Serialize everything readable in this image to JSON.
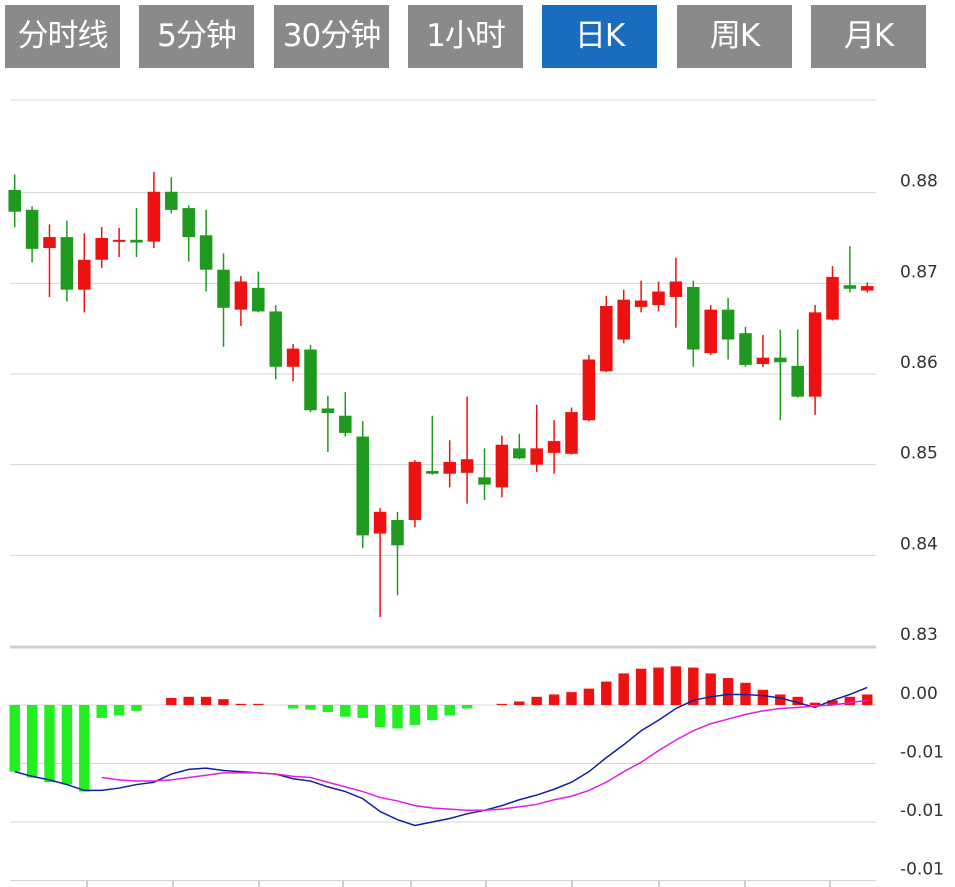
{
  "tabs": {
    "items": [
      "分时线",
      "5分钟",
      "30分钟",
      "1小时",
      "日K",
      "周K",
      "月K"
    ],
    "active": 4
  },
  "chart_data": [
    {
      "type": "candlestick",
      "categories": [
        null,
        null,
        null,
        null,
        null,
        null,
        null,
        null,
        null,
        null,
        null,
        null,
        null,
        null,
        null,
        null,
        null,
        null,
        null,
        null,
        null,
        null,
        null,
        null,
        null,
        null,
        null,
        null,
        null,
        null,
        null,
        null,
        null,
        null,
        null,
        null,
        null,
        null,
        null,
        null,
        null,
        null,
        null,
        null,
        null,
        null,
        null,
        null,
        null,
        null
      ],
      "open": [
        0.8803,
        0.8781,
        0.8739,
        0.8751,
        0.8693,
        0.8726,
        0.8746,
        0.8748,
        0.8746,
        0.8801,
        0.8783,
        0.8753,
        0.8715,
        0.8671,
        0.8695,
        0.8669,
        0.8608,
        0.8627,
        0.8562,
        0.8554,
        0.8531,
        0.8424,
        0.8439,
        0.8439,
        0.8493,
        0.849,
        0.8491,
        0.8486,
        0.8475,
        0.8518,
        0.85,
        0.8513,
        0.8512,
        0.8549,
        0.8603,
        0.8638,
        0.8674,
        0.8676,
        0.8685,
        0.8696,
        0.8623,
        0.8671,
        0.8645,
        0.8611,
        0.8618,
        0.8609,
        0.8575,
        0.866,
        0.8698,
        0.8692
      ],
      "high": [
        0.882,
        0.8785,
        0.8765,
        0.8769,
        0.8755,
        0.8762,
        0.8761,
        0.8783,
        0.8823,
        0.8817,
        0.8786,
        0.8781,
        0.8733,
        0.8708,
        0.8713,
        0.8676,
        0.8633,
        0.8632,
        0.8576,
        0.858,
        0.8548,
        0.8452,
        0.8448,
        0.8505,
        0.8554,
        0.8527,
        0.8575,
        0.8518,
        0.8532,
        0.8534,
        0.8566,
        0.8549,
        0.8563,
        0.8621,
        0.8686,
        0.8693,
        0.8703,
        0.8702,
        0.8728,
        0.8703,
        0.8676,
        0.8684,
        0.8652,
        0.8643,
        0.8649,
        0.8649,
        0.8676,
        0.8719,
        0.8741,
        0.8701
      ],
      "low": [
        0.8762,
        0.8723,
        0.8685,
        0.868,
        0.8668,
        0.8717,
        0.8729,
        0.8729,
        0.8739,
        0.8777,
        0.8724,
        0.8691,
        0.863,
        0.8653,
        0.8668,
        0.8594,
        0.8592,
        0.8558,
        0.8514,
        0.8531,
        0.8408,
        0.8332,
        0.8356,
        0.8431,
        0.8489,
        0.8475,
        0.8457,
        0.8461,
        0.8464,
        0.8506,
        0.8492,
        0.849,
        0.8511,
        0.8548,
        0.8602,
        0.8634,
        0.8668,
        0.8669,
        0.8651,
        0.8608,
        0.8621,
        0.8616,
        0.8608,
        0.8608,
        0.8549,
        0.8574,
        0.8555,
        0.8659,
        0.869,
        0.869
      ],
      "close": [
        0.8779,
        0.8738,
        0.8751,
        0.8693,
        0.8726,
        0.875,
        0.8748,
        0.8745,
        0.8801,
        0.8781,
        0.8751,
        0.8715,
        0.8673,
        0.8702,
        0.8669,
        0.8608,
        0.8628,
        0.856,
        0.8557,
        0.8535,
        0.8422,
        0.8448,
        0.8411,
        0.8503,
        0.849,
        0.8503,
        0.8506,
        0.8478,
        0.8522,
        0.8507,
        0.8518,
        0.8526,
        0.8558,
        0.8616,
        0.8675,
        0.8682,
        0.8681,
        0.8691,
        0.8702,
        0.8627,
        0.8671,
        0.8638,
        0.861,
        0.8618,
        0.8613,
        0.8575,
        0.8668,
        0.8707,
        0.8694,
        0.8697
      ],
      "up_color": "#ee1111",
      "down_color": "#1f9a1f",
      "ylim": [
        0.83,
        0.89
      ],
      "yticks": [
        0.83,
        0.84,
        0.85,
        0.86,
        0.87,
        0.88
      ],
      "grid": true
    },
    {
      "type": "macd",
      "categories": [
        null,
        null,
        null,
        null,
        null,
        null,
        null,
        null,
        null,
        null,
        null,
        null,
        null,
        null,
        null,
        null,
        null,
        null,
        null,
        null,
        null,
        null,
        null,
        null,
        null,
        null,
        null,
        null,
        null,
        null,
        null,
        null,
        null,
        null,
        null,
        null,
        null,
        null,
        null,
        null,
        null,
        null,
        null,
        null,
        null,
        null,
        null,
        null,
        null,
        null
      ],
      "histogram": [
        -0.0057,
        -0.0062,
        -0.0066,
        -0.0068,
        -0.0074,
        -0.0011,
        -0.0009,
        -0.0005,
        0,
        0.0006,
        0.0007,
        0.0007,
        0.0005,
        0.0001,
        0.0001,
        0,
        -0.0003,
        -0.0004,
        -0.0006,
        -0.001,
        -0.0011,
        -0.0019,
        -0.002,
        -0.0017,
        -0.0013,
        -0.0009,
        -0.0003,
        0,
        0.0001,
        0.0003,
        0.0007,
        0.0009,
        0.0011,
        0.0014,
        0.002,
        0.0027,
        0.0031,
        0.0032,
        0.0033,
        0.0032,
        0.0027,
        0.0023,
        0.0019,
        0.0013,
        0.0009,
        0.0007,
        0.0002,
        0.0004,
        0.0007,
        0.0009
      ],
      "up_color": "#ee1111",
      "down_color": "#22ee22",
      "lines": [
        {
          "color": "#1020a0",
          "values": [
            -0.0057,
            -0.0061,
            -0.0064,
            -0.0068,
            -0.0073,
            -0.0073,
            -0.0071,
            -0.0068,
            -0.0066,
            -0.0059,
            -0.0055,
            -0.0054,
            -0.0056,
            -0.0057,
            -0.0058,
            -0.0059,
            -0.0063,
            -0.0065,
            -0.007,
            -0.0074,
            -0.008,
            -0.0091,
            -0.0098,
            -0.0103,
            -0.01,
            -0.0097,
            -0.0093,
            -0.009,
            -0.0086,
            -0.0081,
            -0.0077,
            -0.0072,
            -0.0066,
            -0.0057,
            -0.0045,
            -0.0034,
            -0.0022,
            -0.0013,
            -0.0003,
            0.0004,
            0.0007,
            0.0009,
            0.0009,
            0.0008,
            0.0006,
            0.0002,
            -0.0002,
            0.0004,
            0.0009,
            0.0015
          ]
        },
        {
          "color": "#e020e0",
          "values": [
            null,
            null,
            null,
            null,
            null,
            -0.0062,
            -0.0064,
            -0.0065,
            -0.0065,
            -0.0064,
            -0.0062,
            -0.006,
            -0.0058,
            -0.0058,
            -0.0058,
            -0.0059,
            -0.0061,
            -0.0062,
            -0.0066,
            -0.007,
            -0.0074,
            -0.0079,
            -0.0082,
            -0.0086,
            -0.0088,
            -0.0089,
            -0.009,
            -0.009,
            -0.0089,
            -0.0087,
            -0.0085,
            -0.0081,
            -0.0078,
            -0.0073,
            -0.0066,
            -0.0057,
            -0.0049,
            -0.0039,
            -0.003,
            -0.0022,
            -0.0016,
            -0.0012,
            -0.0008,
            -0.0005,
            -0.0003,
            -0.0002,
            -0.0001,
            0,
            0.0002,
            0.0004
          ]
        }
      ],
      "ylim": [
        -0.015,
        0.005
      ],
      "yticks": [
        {
          "value": 0,
          "label": "0.00"
        },
        {
          "value": -0.005,
          "label": "-0.01"
        },
        {
          "value": -0.01,
          "label": "-0.01"
        },
        {
          "value": -0.015,
          "label": "-0.01"
        }
      ],
      "grid": true
    }
  ]
}
